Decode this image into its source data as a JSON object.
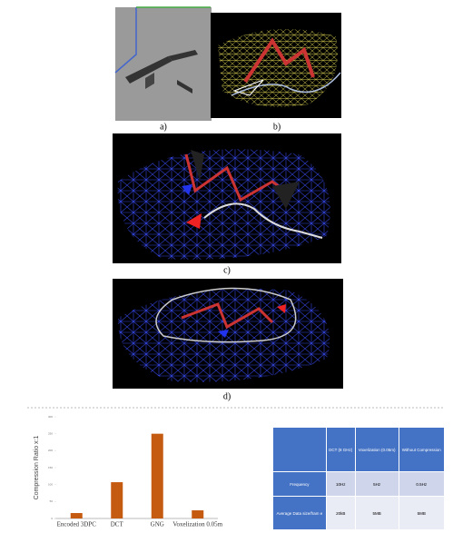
{
  "figure": {
    "panel_labels": [
      "a)",
      "b)",
      "c)",
      "d)"
    ]
  },
  "chart_data": {
    "type": "bar",
    "ylabel": "Compression Ratio x:1",
    "categories": [
      "Encoded 3DPC",
      "DCT",
      "GNG",
      "Voxelization 0.05m"
    ],
    "values": [
      16,
      107,
      250,
      24
    ],
    "color": "#c55a11",
    "ylim": [
      0,
      300
    ],
    "yticks": [
      0,
      50,
      100,
      150,
      200,
      250,
      300
    ]
  },
  "table": {
    "header": [
      "DCT (8 GHz)",
      "Voxelization (0.05m)",
      "Without Compression"
    ],
    "rows": [
      [
        "Frequency",
        "10Hz",
        "5Hz",
        "0.5Hz"
      ],
      [
        "Average Data size/fram e",
        "20kB",
        "5MB",
        "5MB"
      ]
    ]
  }
}
